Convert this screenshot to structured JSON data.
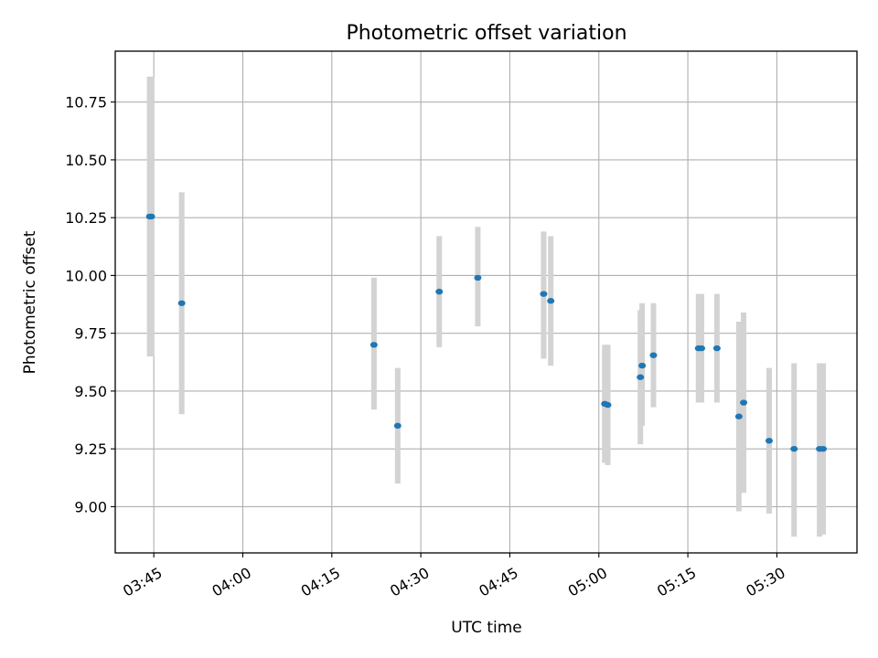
{
  "chart_data": {
    "type": "scatter",
    "title": "Photometric offset variation",
    "xlabel": "UTC time",
    "ylabel": "Photometric offset",
    "grid": true,
    "xlim_minutes": [
      218.5,
      343.5
    ],
    "ylim": [
      8.8,
      10.97
    ],
    "x_tick_minutes": [
      225,
      240,
      255,
      270,
      285,
      300,
      315,
      330
    ],
    "x_tick_labels": [
      "03:45",
      "04:00",
      "04:15",
      "04:30",
      "04:45",
      "05:00",
      "05:15",
      "05:30"
    ],
    "y_ticks": [
      9.0,
      9.25,
      9.5,
      9.75,
      10.0,
      10.25,
      10.5,
      10.75
    ],
    "y_tick_labels": [
      "9.00",
      "9.25",
      "9.50",
      "9.75",
      "10.00",
      "10.25",
      "10.50",
      "10.75"
    ],
    "colors": {
      "point": "#1f77b4",
      "errorbar": "#d3d3d3",
      "grid": "#b0b0b0",
      "axes": "#000000"
    },
    "points": [
      {
        "t": 224.3,
        "value": 10.255,
        "err_low": 9.65,
        "err_high": 10.86
      },
      {
        "t": 224.6,
        "value": 10.255,
        "err_low": 9.65,
        "err_high": 10.86
      },
      {
        "t": 229.7,
        "value": 9.88,
        "err_low": 9.4,
        "err_high": 10.36
      },
      {
        "t": 262.1,
        "value": 9.7,
        "err_low": 9.42,
        "err_high": 9.99
      },
      {
        "t": 266.1,
        "value": 9.35,
        "err_low": 9.1,
        "err_high": 9.6
      },
      {
        "t": 273.1,
        "value": 9.93,
        "err_low": 9.69,
        "err_high": 10.17
      },
      {
        "t": 279.6,
        "value": 9.99,
        "err_low": 9.78,
        "err_high": 10.21
      },
      {
        "t": 290.7,
        "value": 9.92,
        "err_low": 9.64,
        "err_high": 10.19
      },
      {
        "t": 291.9,
        "value": 9.89,
        "err_low": 9.61,
        "err_high": 10.17
      },
      {
        "t": 301.0,
        "value": 9.445,
        "err_low": 9.19,
        "err_high": 9.7
      },
      {
        "t": 301.5,
        "value": 9.44,
        "err_low": 9.18,
        "err_high": 9.7
      },
      {
        "t": 307.0,
        "value": 9.56,
        "err_low": 9.27,
        "err_high": 9.85
      },
      {
        "t": 307.3,
        "value": 9.61,
        "err_low": 9.35,
        "err_high": 9.88
      },
      {
        "t": 309.2,
        "value": 9.655,
        "err_low": 9.43,
        "err_high": 9.88
      },
      {
        "t": 316.8,
        "value": 9.685,
        "err_low": 9.45,
        "err_high": 9.92
      },
      {
        "t": 317.3,
        "value": 9.685,
        "err_low": 9.45,
        "err_high": 9.92
      },
      {
        "t": 319.9,
        "value": 9.685,
        "err_low": 9.45,
        "err_high": 9.92
      },
      {
        "t": 323.6,
        "value": 9.39,
        "err_low": 8.98,
        "err_high": 9.8
      },
      {
        "t": 324.4,
        "value": 9.45,
        "err_low": 9.06,
        "err_high": 9.84
      },
      {
        "t": 328.7,
        "value": 9.285,
        "err_low": 8.97,
        "err_high": 9.6
      },
      {
        "t": 332.9,
        "value": 9.25,
        "err_low": 8.87,
        "err_high": 9.62
      },
      {
        "t": 337.2,
        "value": 9.25,
        "err_low": 8.87,
        "err_high": 9.62
      },
      {
        "t": 337.8,
        "value": 9.25,
        "err_low": 8.88,
        "err_high": 9.62
      }
    ]
  }
}
